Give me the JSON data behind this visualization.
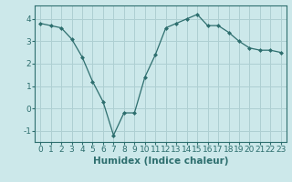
{
  "x": [
    0,
    1,
    2,
    3,
    4,
    5,
    6,
    7,
    8,
    9,
    10,
    11,
    12,
    13,
    14,
    15,
    16,
    17,
    18,
    19,
    20,
    21,
    22,
    23
  ],
  "y": [
    3.8,
    3.7,
    3.6,
    3.1,
    2.3,
    1.2,
    0.3,
    -1.2,
    -0.2,
    -0.2,
    1.4,
    2.4,
    3.6,
    3.8,
    4.0,
    4.2,
    3.7,
    3.7,
    3.4,
    3.0,
    2.7,
    2.6,
    2.6,
    2.5
  ],
  "line_color": "#2d6e6e",
  "bg_color": "#cce8ea",
  "grid_color": "#aecfd2",
  "xlabel": "Humidex (Indice chaleur)",
  "ylim": [
    -1.5,
    4.6
  ],
  "xlim": [
    -0.5,
    23.5
  ],
  "yticks": [
    -1,
    0,
    1,
    2,
    3,
    4
  ],
  "xticks": [
    0,
    1,
    2,
    3,
    4,
    5,
    6,
    7,
    8,
    9,
    10,
    11,
    12,
    13,
    14,
    15,
    16,
    17,
    18,
    19,
    20,
    21,
    22,
    23
  ],
  "xlabel_fontsize": 7.5,
  "tick_fontsize": 6.5
}
